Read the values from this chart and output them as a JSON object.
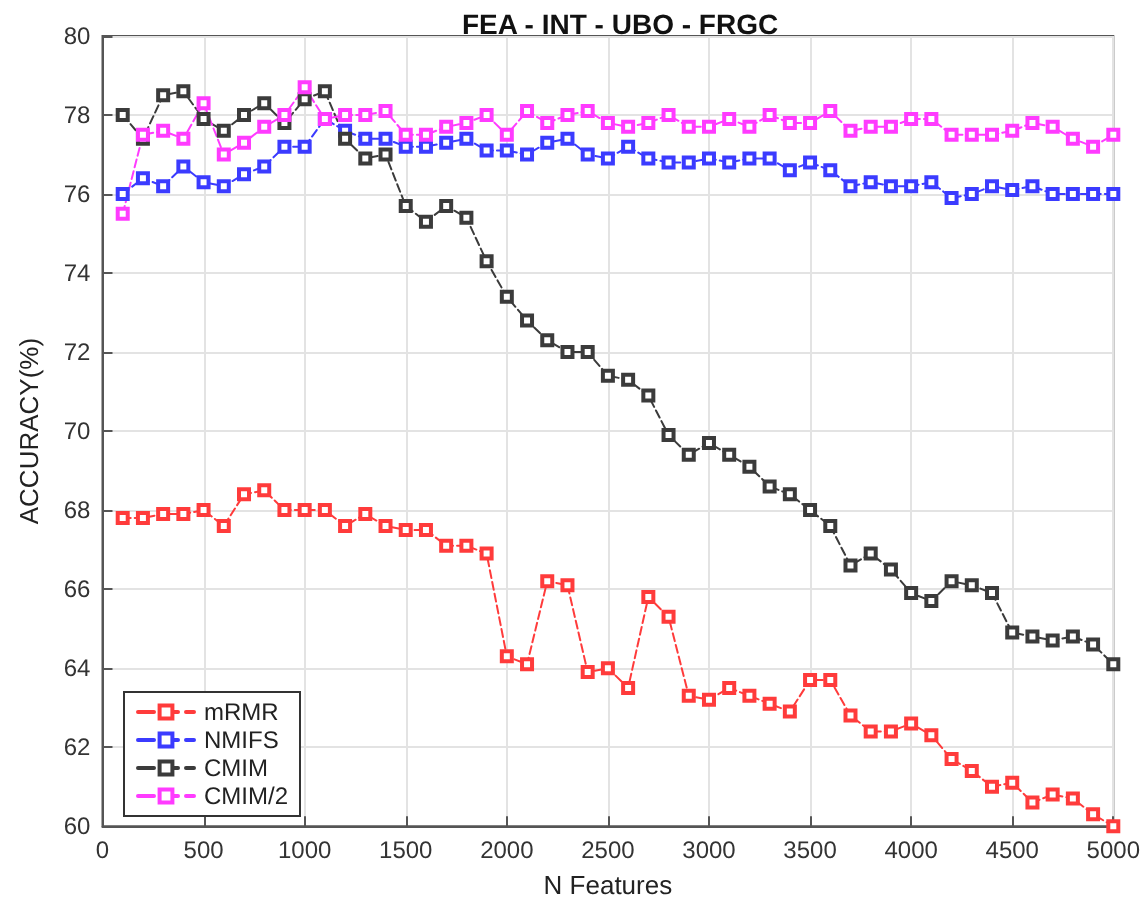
{
  "chart_data": {
    "type": "line",
    "title": "FEA - INT - UBO - FRGC",
    "xlabel": "N Features",
    "ylabel": "ACCURACY(%)",
    "x": [
      100,
      200,
      300,
      400,
      500,
      600,
      700,
      800,
      900,
      1000,
      1100,
      1200,
      1300,
      1400,
      1500,
      1600,
      1700,
      1800,
      1900,
      2000,
      2100,
      2200,
      2300,
      2400,
      2500,
      2600,
      2700,
      2800,
      2900,
      3000,
      3100,
      3200,
      3300,
      3400,
      3500,
      3600,
      3700,
      3800,
      3900,
      4000,
      4100,
      4200,
      4300,
      4400,
      4500,
      4600,
      4700,
      4800,
      4900,
      5000
    ],
    "series": [
      {
        "name": "mRMR",
        "color": "#ff3b3b",
        "values": [
          67.8,
          67.8,
          67.9,
          67.9,
          68.0,
          67.6,
          68.4,
          68.5,
          68.0,
          68.0,
          68.0,
          67.6,
          67.9,
          67.6,
          67.5,
          67.5,
          67.1,
          67.1,
          66.9,
          64.3,
          64.1,
          66.2,
          66.1,
          63.9,
          64.0,
          63.5,
          65.8,
          65.3,
          63.3,
          63.2,
          63.5,
          63.3,
          63.1,
          62.9,
          63.7,
          63.7,
          62.8,
          62.4,
          62.4,
          62.6,
          62.3,
          61.7,
          61.4,
          61.0,
          61.1,
          60.6,
          60.8,
          60.7,
          60.3,
          60.0
        ]
      },
      {
        "name": "NMIFS",
        "color": "#3b3bff",
        "values": [
          76.0,
          76.4,
          76.2,
          76.7,
          76.3,
          76.2,
          76.5,
          76.7,
          77.2,
          77.2,
          77.9,
          77.6,
          77.4,
          77.4,
          77.2,
          77.2,
          77.3,
          77.4,
          77.1,
          77.1,
          77.0,
          77.3,
          77.4,
          77.0,
          76.9,
          77.2,
          76.9,
          76.8,
          76.8,
          76.9,
          76.8,
          76.9,
          76.9,
          76.6,
          76.8,
          76.6,
          76.2,
          76.3,
          76.2,
          76.2,
          76.3,
          75.9,
          76.0,
          76.2,
          76.1,
          76.2,
          76.0,
          76.0,
          76.0,
          76.0
        ]
      },
      {
        "name": "CMIM",
        "color": "#3b3b3b",
        "values": [
          78.0,
          77.4,
          78.5,
          78.6,
          77.9,
          77.6,
          78.0,
          78.3,
          77.8,
          78.4,
          78.6,
          77.4,
          76.9,
          77.0,
          75.7,
          75.3,
          75.7,
          75.4,
          74.3,
          73.4,
          72.8,
          72.3,
          72.0,
          72.0,
          71.4,
          71.3,
          70.9,
          69.9,
          69.4,
          69.7,
          69.4,
          69.1,
          68.6,
          68.4,
          68.0,
          67.6,
          66.6,
          66.9,
          66.5,
          65.9,
          65.7,
          66.2,
          66.1,
          65.9,
          64.9,
          64.8,
          64.7,
          64.8,
          64.6,
          64.1
        ]
      },
      {
        "name": "CMIM/2",
        "color": "#ff3bff",
        "values": [
          75.5,
          77.5,
          77.6,
          77.4,
          78.3,
          77.0,
          77.3,
          77.7,
          78.0,
          78.7,
          77.9,
          78.0,
          78.0,
          78.1,
          77.5,
          77.5,
          77.7,
          77.8,
          78.0,
          77.5,
          78.1,
          77.8,
          78.0,
          78.1,
          77.8,
          77.7,
          77.8,
          78.0,
          77.7,
          77.7,
          77.9,
          77.7,
          78.0,
          77.8,
          77.8,
          78.1,
          77.6,
          77.7,
          77.7,
          77.9,
          77.9,
          77.5,
          77.5,
          77.5,
          77.6,
          77.8,
          77.7,
          77.4,
          77.2,
          77.5
        ]
      }
    ],
    "xlim": [
      0,
      5000
    ],
    "xticks": [
      0,
      500,
      1000,
      1500,
      2000,
      2500,
      3000,
      3500,
      4000,
      4500,
      5000
    ],
    "ylim": [
      60,
      80
    ],
    "yticks": [
      60,
      62,
      64,
      66,
      68,
      70,
      72,
      74,
      76,
      78,
      80
    ],
    "grid": true,
    "legend": "bottom left",
    "marker": "square",
    "line_style": "dashed"
  }
}
